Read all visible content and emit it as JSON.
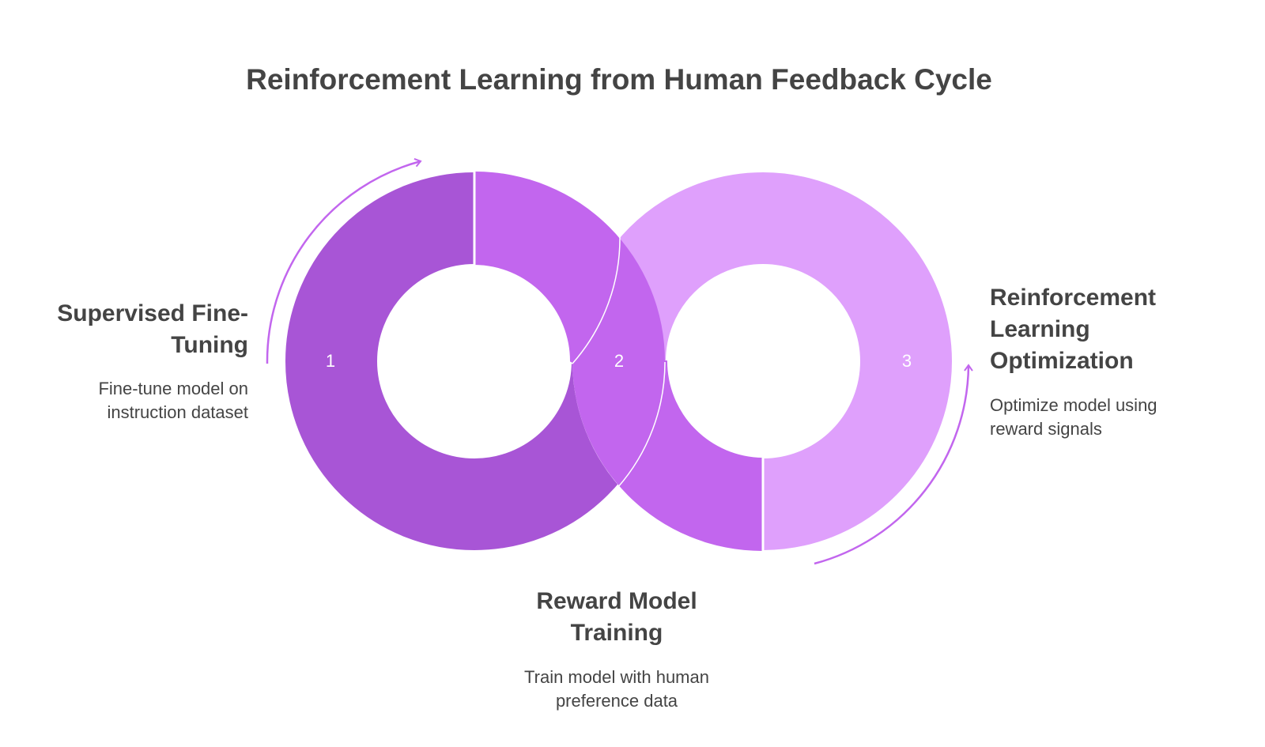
{
  "title": "Reinforcement Learning from Human Feedback Cycle",
  "steps": [
    {
      "number": "1",
      "title": "Supervised Fine-Tuning",
      "description": "Fine-tune model on instruction dataset"
    },
    {
      "number": "2",
      "title": "Reward Model Training",
      "description": "Train model with human preference data"
    },
    {
      "number": "3",
      "title": "Reinforcement Learning Optimization",
      "description": "Optimize model using reward signals"
    }
  ]
}
